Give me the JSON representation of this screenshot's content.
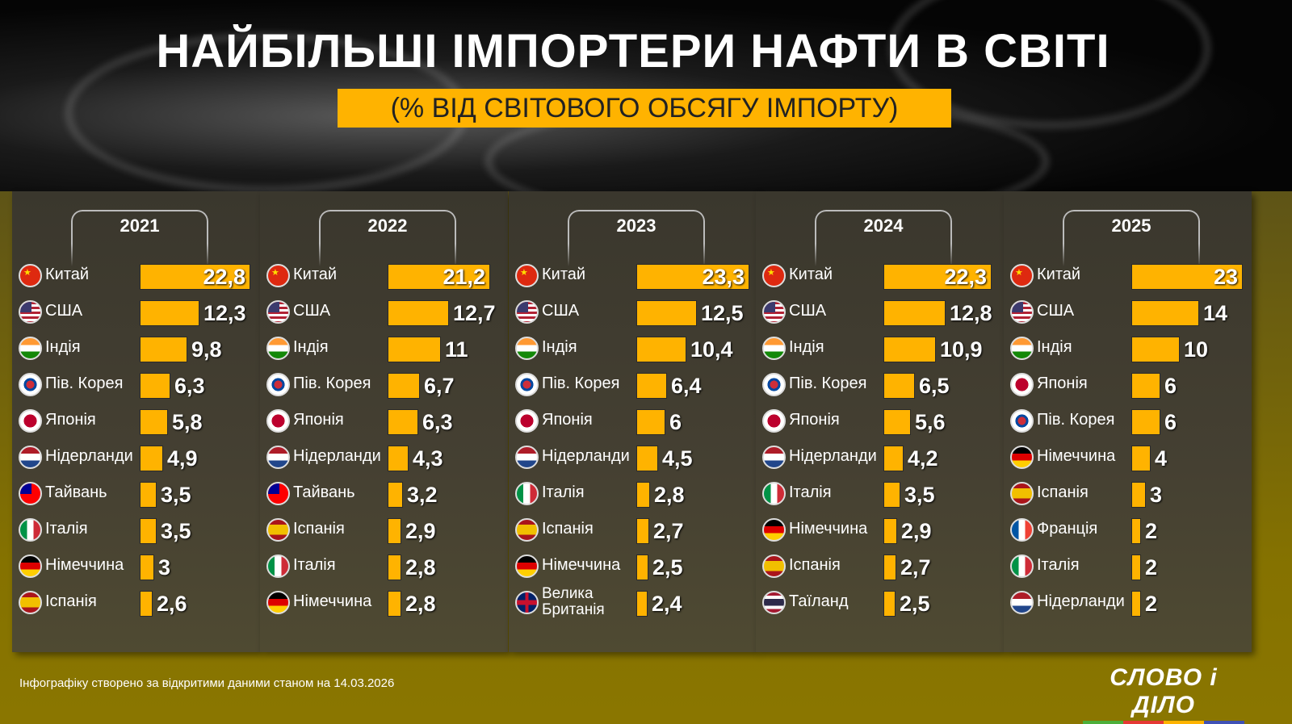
{
  "header": {
    "title": "НАЙБІЛЬШІ ІМПОРТЕРИ НАФТИ В СВІТІ",
    "subtitle": "(% ВІД СВІТОВОГО ОБСЯГУ ІМПОРТУ)"
  },
  "footer": {
    "note": "Інфографіку створено за відкритими даними станом на 14.03.2026",
    "logo": "СЛОВО і ДІЛО"
  },
  "colors": {
    "bar": "#ffb300",
    "background": "#857200",
    "panel": "#423e31",
    "logo_line": [
      "#4caf3a",
      "#e53935",
      "#ffb300",
      "#3f51b5"
    ]
  },
  "chart_data": [
    {
      "type": "bar",
      "title": "2021",
      "categories": [
        "Китай",
        "США",
        "Індія",
        "Пів. Корея",
        "Японія",
        "Нідерланди",
        "Тайвань",
        "Італія",
        "Німеччина",
        "Іспанія"
      ],
      "flags": [
        "cn",
        "us",
        "in",
        "kr",
        "jp",
        "nl",
        "tw",
        "it",
        "de",
        "es"
      ],
      "values": [
        22.8,
        12.3,
        9.8,
        6.3,
        5.8,
        4.9,
        3.5,
        3.5,
        3,
        2.6
      ],
      "labels": [
        "22,8",
        "12,3",
        "9,8",
        "6,3",
        "5,8",
        "4,9",
        "3,5",
        "3,5",
        "3",
        "2,6"
      ]
    },
    {
      "type": "bar",
      "title": "2022",
      "categories": [
        "Китай",
        "США",
        "Індія",
        "Пів. Корея",
        "Японія",
        "Нідерланди",
        "Тайвань",
        "Іспанія",
        "Італія",
        "Німеччина"
      ],
      "flags": [
        "cn",
        "us",
        "in",
        "kr",
        "jp",
        "nl",
        "tw",
        "es",
        "it",
        "de"
      ],
      "values": [
        21.2,
        12.7,
        11,
        6.7,
        6.3,
        4.3,
        3.2,
        2.9,
        2.8,
        2.8
      ],
      "labels": [
        "21,2",
        "12,7",
        "11",
        "6,7",
        "6,3",
        "4,3",
        "3,2",
        "2,9",
        "2,8",
        "2,8"
      ]
    },
    {
      "type": "bar",
      "title": "2023",
      "categories": [
        "Китай",
        "США",
        "Індія",
        "Пів. Корея",
        "Японія",
        "Нідерланди",
        "Італія",
        "Іспанія",
        "Німеччина",
        "Велика\nБританія"
      ],
      "flags": [
        "cn",
        "us",
        "in",
        "kr",
        "jp",
        "nl",
        "it",
        "es",
        "de",
        "gb"
      ],
      "values": [
        23.3,
        12.5,
        10.4,
        6.4,
        6,
        4.5,
        2.8,
        2.7,
        2.5,
        2.4
      ],
      "labels": [
        "23,3",
        "12,5",
        "10,4",
        "6,4",
        "6",
        "4,5",
        "2,8",
        "2,7",
        "2,5",
        "2,4"
      ]
    },
    {
      "type": "bar",
      "title": "2024",
      "categories": [
        "Китай",
        "США",
        "Індія",
        "Пів. Корея",
        "Японія",
        "Нідерланди",
        "Італія",
        "Німеччина",
        "Іспанія",
        "Таїланд"
      ],
      "flags": [
        "cn",
        "us",
        "in",
        "kr",
        "jp",
        "nl",
        "it",
        "de",
        "es",
        "th"
      ],
      "values": [
        22.3,
        12.8,
        10.9,
        6.5,
        5.6,
        4.2,
        3.5,
        2.9,
        2.7,
        2.5
      ],
      "labels": [
        "22,3",
        "12,8",
        "10,9",
        "6,5",
        "5,6",
        "4,2",
        "3,5",
        "2,9",
        "2,7",
        "2,5"
      ]
    },
    {
      "type": "bar",
      "title": "2025",
      "categories": [
        "Китай",
        "США",
        "Індія",
        "Японія",
        "Пів. Корея",
        "Німеччина",
        "Іспанія",
        "Франція",
        "Італія",
        "Нідерланди"
      ],
      "flags": [
        "cn",
        "us",
        "in",
        "jp",
        "kr",
        "de",
        "es",
        "fr",
        "it",
        "nl"
      ],
      "values": [
        23,
        14,
        10,
        6,
        6,
        4,
        3,
        2,
        2,
        2
      ],
      "labels": [
        "23",
        "14",
        "10",
        "6",
        "6",
        "4",
        "3",
        "2",
        "2",
        "2"
      ]
    }
  ]
}
